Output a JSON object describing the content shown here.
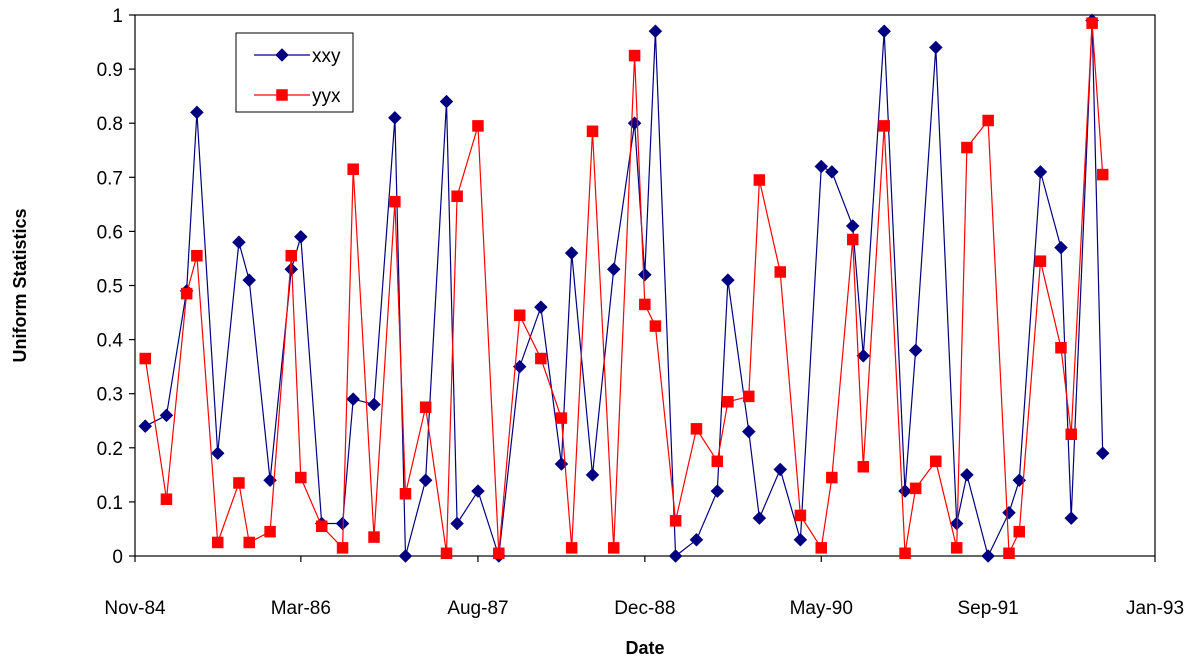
{
  "chart_data": {
    "type": "line",
    "xlabel": "Date",
    "ylabel": "Uniform Statistics",
    "xlim": [
      "1984-11-01",
      "1993-01-01"
    ],
    "ylim": [
      0,
      1
    ],
    "x_ticks": [
      {
        "date": "1984-11-01",
        "label": "Nov-84"
      },
      {
        "date": "1986-03-01",
        "label": "Mar-86"
      },
      {
        "date": "1987-08-01",
        "label": "Aug-87"
      },
      {
        "date": "1988-12-01",
        "label": "Dec-88"
      },
      {
        "date": "1990-05-01",
        "label": "May-90"
      },
      {
        "date": "1991-09-01",
        "label": "Sep-91"
      },
      {
        "date": "1993-01-01",
        "label": "Jan-93"
      }
    ],
    "y_ticks": [
      {
        "value": 0,
        "label": "0"
      },
      {
        "value": 0.1,
        "label": "0.1"
      },
      {
        "value": 0.2,
        "label": "0.2"
      },
      {
        "value": 0.3,
        "label": "0.3"
      },
      {
        "value": 0.4,
        "label": "0.4"
      },
      {
        "value": 0.5,
        "label": "0.5"
      },
      {
        "value": 0.6,
        "label": "0.6"
      },
      {
        "value": 0.7,
        "label": "0.7"
      },
      {
        "value": 0.8,
        "label": "0.8"
      },
      {
        "value": 0.9,
        "label": "0.9"
      },
      {
        "value": 1,
        "label": "1"
      }
    ],
    "grid": false,
    "legend_position": "top-left",
    "x": [
      "1984-12-01",
      "1985-01-01",
      "1985-02-01",
      "1985-03-01",
      "1985-04-01",
      "1985-05-01",
      "1985-06-01",
      "1985-07-01",
      "1985-08-01",
      "1985-09-01",
      "1985-10-01",
      "1985-11-01",
      "1985-12-01",
      "1986-01-01",
      "1986-02-01",
      "1986-03-01",
      "1986-04-01",
      "1986-05-01",
      "1986-06-01",
      "1986-07-01",
      "1986-08-01",
      "1986-09-01",
      "1986-10-01",
      "1986-11-01",
      "1986-12-01",
      "1987-01-01",
      "1987-02-01",
      "1987-03-01",
      "1987-04-01",
      "1987-05-01",
      "1987-06-01",
      "1987-07-01",
      "1987-08-01",
      "1987-09-01",
      "1987-10-01",
      "1987-11-01",
      "1987-12-01",
      "1988-01-01",
      "1988-02-01",
      "1988-03-01",
      "1988-04-01",
      "1988-05-01",
      "1988-06-01",
      "1988-07-01",
      "1988-08-01",
      "1988-09-01",
      "1988-10-01",
      "1988-11-01",
      "1988-12-01",
      "1989-01-01",
      "1989-02-01",
      "1989-03-01",
      "1989-04-01",
      "1989-05-01",
      "1989-06-01",
      "1989-07-01",
      "1989-08-01",
      "1989-09-01",
      "1989-10-01",
      "1989-11-01",
      "1989-12-01",
      "1990-01-01",
      "1990-02-01",
      "1990-03-01",
      "1990-04-01",
      "1990-05-01",
      "1990-06-01",
      "1990-07-01",
      "1990-08-01",
      "1990-09-01",
      "1990-10-01",
      "1990-11-01",
      "1990-12-01",
      "1991-01-01",
      "1991-02-01",
      "1991-03-01",
      "1991-04-01",
      "1991-05-01",
      "1991-06-01",
      "1991-07-01",
      "1991-08-01",
      "1991-09-01",
      "1991-10-01",
      "1991-11-01",
      "1991-12-01",
      "1992-01-01",
      "1992-02-01",
      "1992-03-01",
      "1992-04-01",
      "1992-05-01",
      "1992-06-01"
    ],
    "series": [
      {
        "name": "xxy",
        "color": "#000080",
        "marker": "diamond",
        "points": [
          [
            "1984-12-01",
            0.24
          ],
          [
            "1985-02-01",
            0.26
          ],
          [
            "1985-04-01",
            0.49
          ],
          [
            "1985-05-01",
            0.82
          ],
          [
            "1985-07-01",
            0.19
          ],
          [
            "1985-09-01",
            0.58
          ],
          [
            "1985-10-01",
            0.51
          ],
          [
            "1985-12-01",
            0.14
          ],
          [
            "1986-02-01",
            0.53
          ],
          [
            "1986-03-01",
            0.59
          ],
          [
            "1986-05-01",
            0.06
          ],
          [
            "1986-07-01",
            0.06
          ],
          [
            "1986-08-01",
            0.29
          ],
          [
            "1986-10-01",
            0.28
          ],
          [
            "1986-12-01",
            0.81
          ],
          [
            "1987-01-01",
            0.0
          ],
          [
            "1987-03-01",
            0.14
          ],
          [
            "1987-05-01",
            0.84
          ],
          [
            "1987-06-01",
            0.06
          ],
          [
            "1987-08-01",
            0.12
          ],
          [
            "1987-10-01",
            0.0
          ],
          [
            "1987-12-01",
            0.35
          ],
          [
            "1988-02-01",
            0.46
          ],
          [
            "1988-04-01",
            0.17
          ],
          [
            "1988-05-01",
            0.56
          ],
          [
            "1988-07-01",
            0.15
          ],
          [
            "1988-09-01",
            0.53
          ],
          [
            "1988-11-01",
            0.8
          ],
          [
            "1988-12-01",
            0.52
          ],
          [
            "1989-01-01",
            0.97
          ],
          [
            "1989-03-01",
            0.0
          ],
          [
            "1989-05-01",
            0.03
          ],
          [
            "1989-07-01",
            0.12
          ],
          [
            "1989-08-01",
            0.51
          ],
          [
            "1989-10-01",
            0.23
          ],
          [
            "1989-11-01",
            0.07
          ],
          [
            "1990-01-01",
            0.16
          ],
          [
            "1990-03-01",
            0.03
          ],
          [
            "1990-05-01",
            0.72
          ],
          [
            "1990-06-01",
            0.71
          ],
          [
            "1990-08-01",
            0.61
          ],
          [
            "1990-09-01",
            0.37
          ],
          [
            "1990-11-01",
            0.97
          ],
          [
            "1991-01-01",
            0.12
          ],
          [
            "1991-02-01",
            0.38
          ],
          [
            "1991-04-01",
            0.94
          ],
          [
            "1991-06-01",
            0.06
          ],
          [
            "1991-07-01",
            0.15
          ],
          [
            "1991-09-01",
            0.0
          ],
          [
            "1991-11-01",
            0.08
          ],
          [
            "1991-12-01",
            0.14
          ],
          [
            "1992-02-01",
            0.71
          ],
          [
            "1992-04-01",
            0.57
          ],
          [
            "1992-05-01",
            0.07
          ],
          [
            "1992-07-01",
            0.99
          ],
          [
            "1992-08-01",
            0.19
          ]
        ]
      },
      {
        "name": "yyx",
        "color": "#ff0000",
        "marker": "square",
        "points": [
          [
            "1984-12-01",
            0.365
          ],
          [
            "1985-02-01",
            0.105
          ],
          [
            "1985-04-01",
            0.485
          ],
          [
            "1985-05-01",
            0.555
          ],
          [
            "1985-07-01",
            0.025
          ],
          [
            "1985-09-01",
            0.135
          ],
          [
            "1985-10-01",
            0.025
          ],
          [
            "1985-12-01",
            0.045
          ],
          [
            "1986-02-01",
            0.555
          ],
          [
            "1986-03-01",
            0.145
          ],
          [
            "1986-05-01",
            0.055
          ],
          [
            "1986-07-01",
            0.015
          ],
          [
            "1986-08-01",
            0.715
          ],
          [
            "1986-10-01",
            0.035
          ],
          [
            "1986-12-01",
            0.655
          ],
          [
            "1987-01-01",
            0.115
          ],
          [
            "1987-03-01",
            0.275
          ],
          [
            "1987-05-01",
            0.005
          ],
          [
            "1987-06-01",
            0.665
          ],
          [
            "1987-08-01",
            0.795
          ],
          [
            "1987-10-01",
            0.005
          ],
          [
            "1987-12-01",
            0.445
          ],
          [
            "1988-02-01",
            0.365
          ],
          [
            "1988-04-01",
            0.255
          ],
          [
            "1988-05-01",
            0.015
          ],
          [
            "1988-07-01",
            0.785
          ],
          [
            "1988-09-01",
            0.015
          ],
          [
            "1988-11-01",
            0.925
          ],
          [
            "1988-12-01",
            0.465
          ],
          [
            "1989-01-01",
            0.425
          ],
          [
            "1989-03-01",
            0.065
          ],
          [
            "1989-05-01",
            0.235
          ],
          [
            "1989-07-01",
            0.175
          ],
          [
            "1989-08-01",
            0.285
          ],
          [
            "1989-10-01",
            0.295
          ],
          [
            "1989-11-01",
            0.695
          ],
          [
            "1990-01-01",
            0.525
          ],
          [
            "1990-03-01",
            0.075
          ],
          [
            "1990-05-01",
            0.015
          ],
          [
            "1990-06-01",
            0.145
          ],
          [
            "1990-08-01",
            0.585
          ],
          [
            "1990-09-01",
            0.165
          ],
          [
            "1990-11-01",
            0.795
          ],
          [
            "1991-01-01",
            0.005
          ],
          [
            "1991-02-01",
            0.125
          ],
          [
            "1991-04-01",
            0.175
          ],
          [
            "1991-06-01",
            0.015
          ],
          [
            "1991-07-01",
            0.755
          ],
          [
            "1991-09-01",
            0.805
          ],
          [
            "1991-11-01",
            0.005
          ],
          [
            "1991-12-01",
            0.045
          ],
          [
            "1992-02-01",
            0.545
          ],
          [
            "1992-04-01",
            0.385
          ],
          [
            "1992-05-01",
            0.225
          ],
          [
            "1992-07-01",
            0.985
          ],
          [
            "1992-08-01",
            0.705
          ]
        ]
      }
    ]
  }
}
